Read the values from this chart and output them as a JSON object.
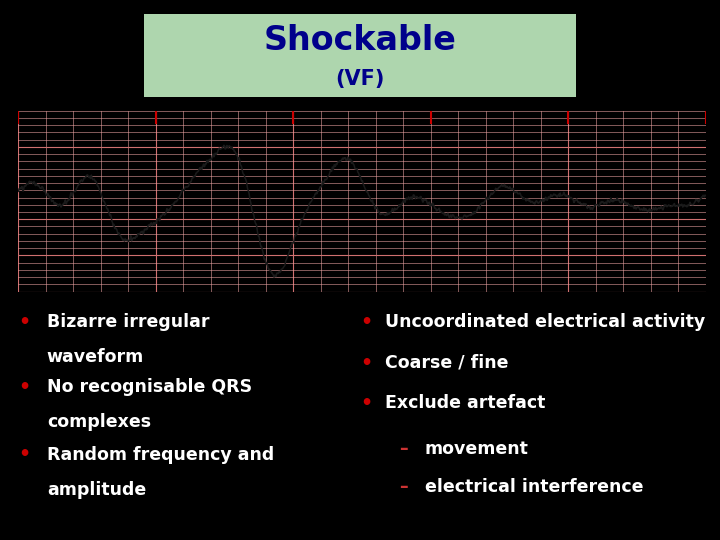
{
  "title": "Shockable",
  "subtitle": "(VF)",
  "title_color": "#00008B",
  "title_box_color": "#aed6ae",
  "bg_color": "#000000",
  "ecg_bg": "#f5c0c0",
  "ecg_line_color": "#1a1a1a",
  "bullet_color": "#cc0000",
  "left_bullets": [
    "Bizarre irregular\nwaveform",
    "No recognisable QRS\ncomplexes",
    "Random frequency and\namplitude"
  ],
  "right_bullets": [
    "Uncoordinated electrical activity",
    "Coarse / fine",
    "Exclude artefact"
  ],
  "right_sub": [
    "– movement",
    "– electrical interference"
  ],
  "text_color": "#ffffff",
  "grid_minor_color": "#e8a0a0",
  "grid_major_color": "#d07070",
  "title_fontsize": 24,
  "subtitle_fontsize": 15,
  "bullet_fontsize": 12.5
}
